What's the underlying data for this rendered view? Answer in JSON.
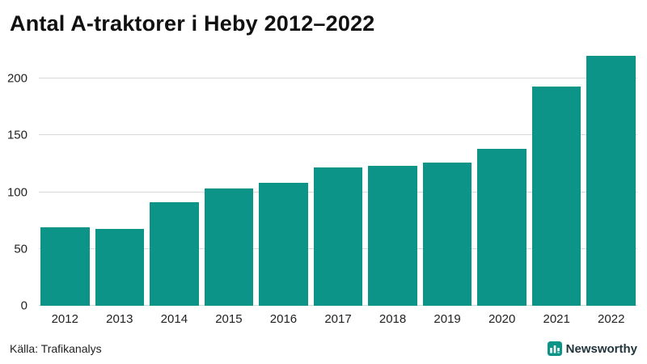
{
  "title": "Antal A-traktorer i Heby 2012–2022",
  "source": "Källa: Trafikanalys",
  "brand": {
    "name": "Newsworthy",
    "icon": "bar-chart-logo",
    "color": "#0d9488"
  },
  "colors": {
    "bar": "#0d9488",
    "gridline": "#d9d9d9",
    "text": "#222222",
    "title": "#111111",
    "background": "#ffffff"
  },
  "chart_data": {
    "type": "bar",
    "title": "Antal A-traktorer i Heby 2012–2022",
    "categories": [
      "2012",
      "2013",
      "2014",
      "2015",
      "2016",
      "2017",
      "2018",
      "2019",
      "2020",
      "2021",
      "2022"
    ],
    "values": [
      69,
      68,
      91,
      103,
      108,
      122,
      123,
      126,
      138,
      193,
      220
    ],
    "xlabel": "",
    "ylabel": "",
    "ylim": [
      0,
      225
    ],
    "yticks": [
      0,
      50,
      100,
      150,
      200
    ],
    "grid": true,
    "legend": "none",
    "bar_color": "#0d9488",
    "source": "Källa: Trafikanalys"
  }
}
